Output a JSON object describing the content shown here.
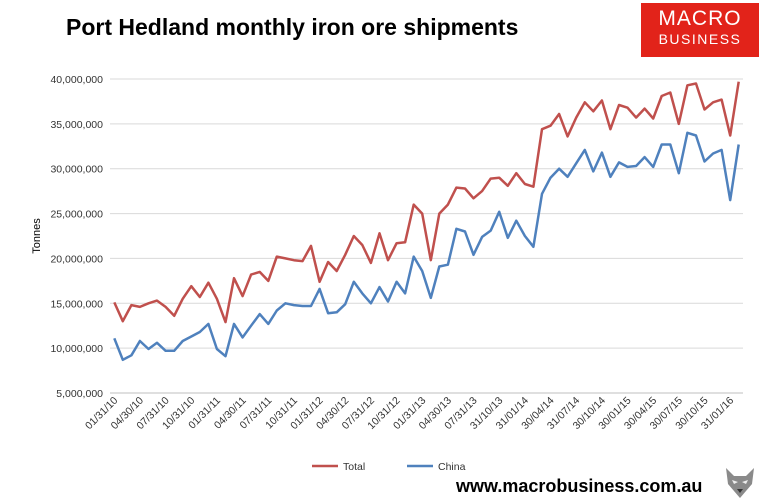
{
  "title": "Port Hedland monthly iron ore shipments",
  "logo": {
    "line1": "MACRO",
    "line2": "BUSINESS"
  },
  "website": "www.macrobusiness.com.au",
  "colors": {
    "total": "#c0504d",
    "china": "#4f81bd",
    "logo_bg": "#e2231a"
  },
  "chart_data": {
    "type": "line",
    "title": "",
    "xlabel": "",
    "ylabel": "Tonnes",
    "ylim": [
      5000000,
      40000000
    ],
    "yticks": [
      5000000,
      10000000,
      15000000,
      20000000,
      25000000,
      30000000,
      35000000,
      40000000
    ],
    "ytick_labels": [
      "5,000,000",
      "10,000,000",
      "15,000,000",
      "20,000,000",
      "25,000,000",
      "30,000,000",
      "35,000,000",
      "40,000,000"
    ],
    "grid": true,
    "legend": "bottom",
    "x_tick_labels": [
      "01/31/10",
      "04/30/10",
      "07/31/10",
      "10/31/10",
      "01/31/11",
      "04/30/11",
      "07/31/11",
      "10/31/11",
      "01/31/12",
      "04/30/12",
      "07/31/12",
      "10/31/12",
      "01/31/13",
      "04/30/13",
      "07/31/13",
      "31/10/13",
      "31/01/14",
      "30/04/14",
      "31/07/14",
      "30/10/14",
      "30/01/15",
      "30/04/15",
      "30/07/15",
      "30/10/15",
      "31/01/16"
    ],
    "x_tick_every": 3,
    "series": [
      {
        "name": "Total",
        "color": "#c0504d",
        "values": [
          15100000,
          13000000,
          14800000,
          14600000,
          15000000,
          15300000,
          14600000,
          13600000,
          15500000,
          16900000,
          15700000,
          17300000,
          15500000,
          12900000,
          17800000,
          15800000,
          18200000,
          18500000,
          17500000,
          20200000,
          20000000,
          19800000,
          19700000,
          21400000,
          17400000,
          19600000,
          18600000,
          20400000,
          22500000,
          21500000,
          19500000,
          22800000,
          19800000,
          21700000,
          21800000,
          26000000,
          25000000,
          19800000,
          25000000,
          26000000,
          27900000,
          27800000,
          26700000,
          27500000,
          28900000,
          29000000,
          28100000,
          29500000,
          28300000,
          28000000,
          34400000,
          34800000,
          36100000,
          33600000,
          35700000,
          37400000,
          36400000,
          37600000,
          34400000,
          37100000,
          36800000,
          35700000,
          36700000,
          35600000,
          38100000,
          38500000,
          35000000,
          39300000,
          39500000,
          36600000,
          37400000,
          37700000,
          33700000,
          39700000
        ]
      },
      {
        "name": "China",
        "color": "#4f81bd",
        "values": [
          11100000,
          8700000,
          9200000,
          10800000,
          9900000,
          10600000,
          9700000,
          9700000,
          10800000,
          11300000,
          11800000,
          12700000,
          9900000,
          9100000,
          12700000,
          11200000,
          12500000,
          13800000,
          12700000,
          14200000,
          15000000,
          14800000,
          14700000,
          14700000,
          16600000,
          13900000,
          14000000,
          14900000,
          17400000,
          16100000,
          15000000,
          16800000,
          15200000,
          17400000,
          16100000,
          20200000,
          18600000,
          15600000,
          19100000,
          19300000,
          23300000,
          23000000,
          20400000,
          22400000,
          23100000,
          25200000,
          22300000,
          24200000,
          22500000,
          21300000,
          27200000,
          29000000,
          30000000,
          29100000,
          30600000,
          32100000,
          29700000,
          31800000,
          29100000,
          30700000,
          30200000,
          30300000,
          31300000,
          30200000,
          32700000,
          32700000,
          29500000,
          34000000,
          33700000,
          30800000,
          31700000,
          32100000,
          26500000,
          32700000
        ]
      }
    ]
  }
}
